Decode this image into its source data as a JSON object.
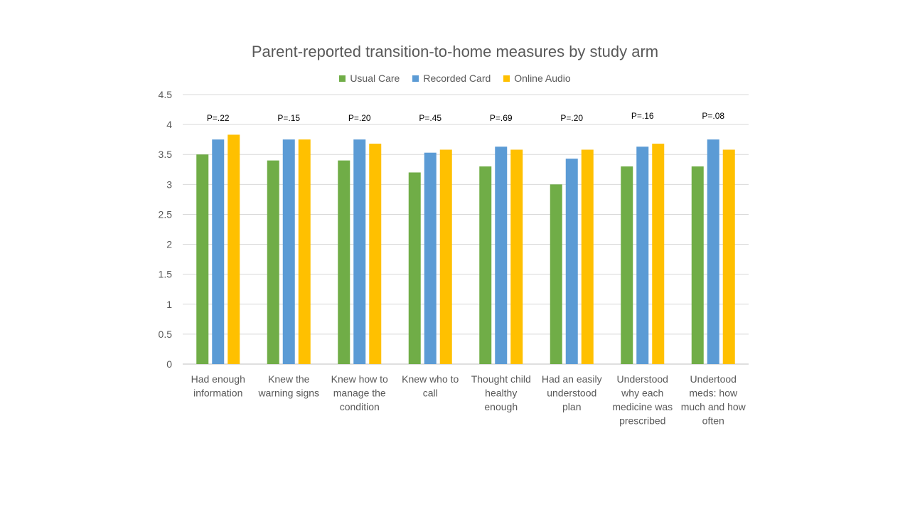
{
  "chart_data": {
    "type": "bar",
    "title": "Parent-reported transition-to-home measures by study arm",
    "xlabel": "",
    "ylabel": "",
    "ylim": [
      0,
      4.5
    ],
    "yticks": [
      "0",
      "0.5",
      "1",
      "1.5",
      "2",
      "2.5",
      "3",
      "3.5",
      "4",
      "4.5"
    ],
    "grid": true,
    "legend_position": "top",
    "categories": [
      [
        "Had enough",
        "information"
      ],
      [
        "Knew the",
        "warning signs"
      ],
      [
        "Knew how to",
        "manage the",
        "condition"
      ],
      [
        "Knew who to",
        "call"
      ],
      [
        "Thought child",
        "healthy",
        "enough"
      ],
      [
        "Had an easily",
        "understood",
        "plan"
      ],
      [
        "Understood",
        "why each",
        "medicine was",
        "prescribed"
      ],
      [
        "Undertood",
        "meds: how",
        "much and how",
        "often"
      ]
    ],
    "series": [
      {
        "name": "Usual Care",
        "color": "#70ad47",
        "values": [
          3.5,
          3.4,
          3.4,
          3.2,
          3.3,
          3.0,
          3.3,
          3.3
        ]
      },
      {
        "name": "Recorded Card",
        "color": "#5b9bd5",
        "values": [
          3.75,
          3.75,
          3.75,
          3.53,
          3.63,
          3.43,
          3.63,
          3.75
        ]
      },
      {
        "name": "Online Audio",
        "color": "#ffc000",
        "values": [
          3.83,
          3.75,
          3.68,
          3.58,
          3.58,
          3.58,
          3.68,
          3.58
        ]
      }
    ],
    "annotations": [
      "P=.22",
      "P=.15",
      "P=.20",
      "P=.45",
      "P=.69",
      "P=.20",
      "P=.16",
      "P=.08"
    ]
  }
}
